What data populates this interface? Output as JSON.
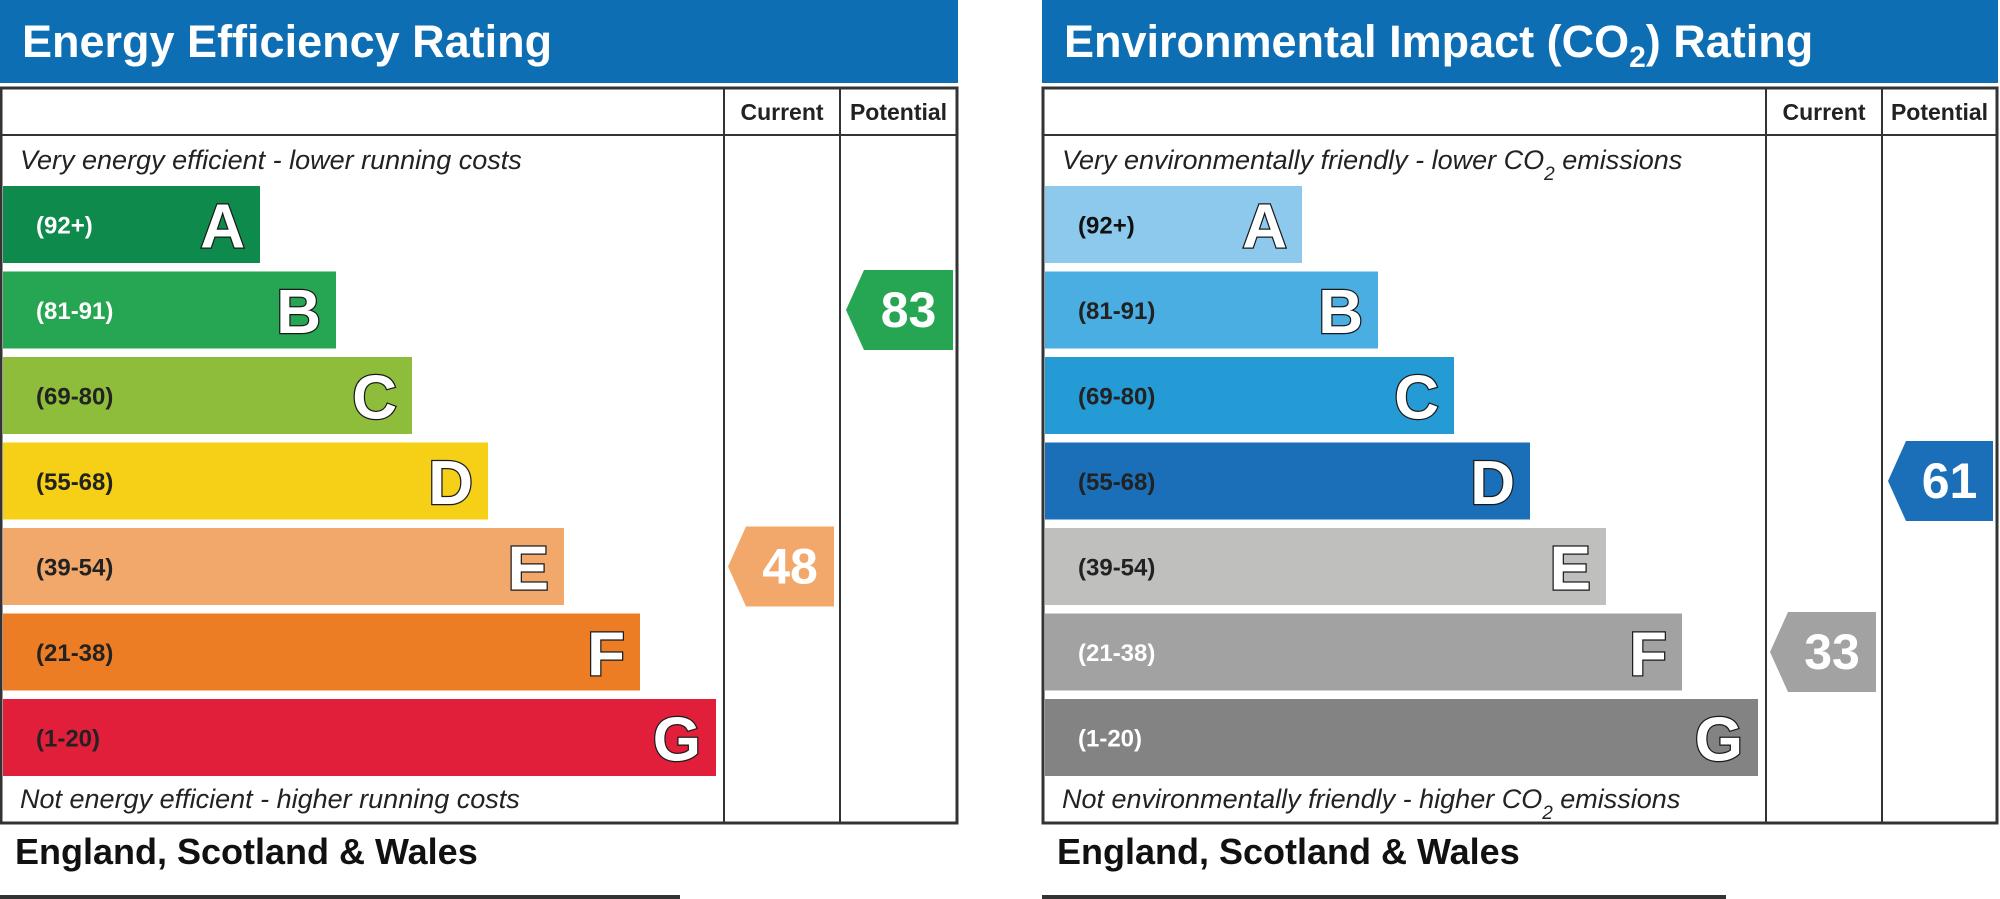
{
  "chart_data": [
    {
      "type": "bar",
      "title": "Energy Efficiency Rating",
      "columns": [
        "Current",
        "Potential"
      ],
      "top_note": "Very energy efficient - lower running costs",
      "bottom_note": "Not energy efficient - higher running costs",
      "bands": [
        {
          "letter": "A",
          "range": "(92+)",
          "color": "#0f8a4d",
          "text_color": "#ffffff"
        },
        {
          "letter": "B",
          "range": "(81-91)",
          "color": "#26a552",
          "text_color": "#ffffff"
        },
        {
          "letter": "C",
          "range": "(69-80)",
          "color": "#8ebd3c",
          "text_color": "#222222"
        },
        {
          "letter": "D",
          "range": "(55-68)",
          "color": "#f6cf17",
          "text_color": "#222222"
        },
        {
          "letter": "E",
          "range": "(39-54)",
          "color": "#f3a86b",
          "text_color": "#222222"
        },
        {
          "letter": "F",
          "range": "(21-38)",
          "color": "#ed7d25",
          "text_color": "#222222"
        },
        {
          "letter": "G",
          "range": "(1-20)",
          "color": "#e21f3b",
          "text_color": "#222222"
        }
      ],
      "current": {
        "value": 48,
        "band": "E",
        "color": "#f3a86b"
      },
      "potential": {
        "value": 83,
        "band": "B",
        "color": "#26a552"
      },
      "footer": "England, Scotland & Wales"
    },
    {
      "type": "bar",
      "title_parts": [
        "Environmental Impact (CO",
        "2",
        ") Rating"
      ],
      "columns": [
        "Current",
        "Potential"
      ],
      "top_note_parts": [
        "Very environmentally friendly - lower CO",
        "2",
        " emissions"
      ],
      "bottom_note_parts": [
        "Not environmentally friendly - higher CO",
        "2",
        " emissions"
      ],
      "bands": [
        {
          "letter": "A",
          "range": "(92+)",
          "color": "#8dc9ed",
          "text_color": "#111111"
        },
        {
          "letter": "B",
          "range": "(81-91)",
          "color": "#4baee3",
          "text_color": "#222222"
        },
        {
          "letter": "C",
          "range": "(69-80)",
          "color": "#259bd6",
          "text_color": "#222222"
        },
        {
          "letter": "D",
          "range": "(55-68)",
          "color": "#1a6fb8",
          "text_color": "#222222"
        },
        {
          "letter": "E",
          "range": "(39-54)",
          "color": "#bfbfbe",
          "text_color": "#222222"
        },
        {
          "letter": "F",
          "range": "(21-38)",
          "color": "#a2a2a2",
          "text_color": "#ffffff"
        },
        {
          "letter": "G",
          "range": "(1-20)",
          "color": "#838383",
          "text_color": "#ffffff"
        }
      ],
      "current": {
        "value": 33,
        "band": "F",
        "color": "#a2a2a2"
      },
      "potential": {
        "value": 61,
        "band": "D",
        "color": "#1a6fb8"
      },
      "footer": "England, Scotland & Wales"
    }
  ]
}
